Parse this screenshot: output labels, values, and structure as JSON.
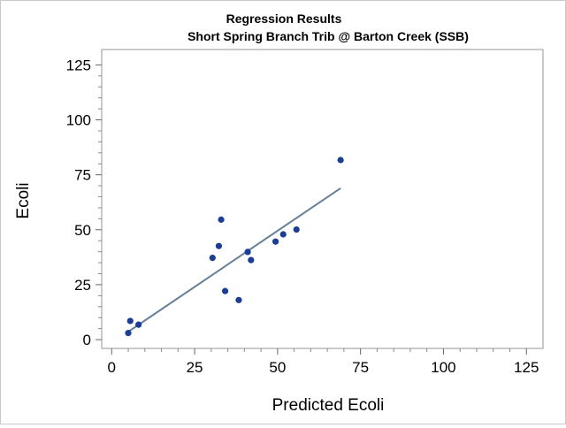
{
  "chart_data": {
    "type": "scatter",
    "title": "Regression Results",
    "subtitle": "Short Spring Branch Trib @ Barton Creek (SSB)",
    "xlabel": "Predicted Ecoli",
    "ylabel": "Ecoli",
    "xlim": [
      -3,
      130
    ],
    "ylim": [
      -4,
      132
    ],
    "x_ticks": [
      0,
      25,
      50,
      75,
      100,
      125
    ],
    "y_ticks": [
      0,
      25,
      50,
      75,
      100,
      125
    ],
    "x_tick_labels": [
      "0",
      "25",
      "50",
      "75",
      "100",
      "125"
    ],
    "y_tick_labels": [
      "0",
      "25",
      "50",
      "75",
      "100",
      "125"
    ],
    "grid": false,
    "colors": {
      "points": "#1a3d99",
      "line": "#667f99",
      "frame": "#969696"
    },
    "series": [
      {
        "type": "scatter",
        "points": [
          {
            "x": 5.0,
            "y": 3.0
          },
          {
            "x": 5.6,
            "y": 8.5
          },
          {
            "x": 8.1,
            "y": 6.8
          },
          {
            "x": 30.4,
            "y": 37.2
          },
          {
            "x": 32.3,
            "y": 42.6
          },
          {
            "x": 33.0,
            "y": 54.6
          },
          {
            "x": 34.2,
            "y": 22.1
          },
          {
            "x": 38.3,
            "y": 18.0
          },
          {
            "x": 41.0,
            "y": 39.9
          },
          {
            "x": 42.0,
            "y": 36.2
          },
          {
            "x": 49.4,
            "y": 44.6
          },
          {
            "x": 51.7,
            "y": 47.9
          },
          {
            "x": 55.7,
            "y": 50.1
          },
          {
            "x": 69.0,
            "y": 81.7
          }
        ]
      },
      {
        "type": "line",
        "points": [
          {
            "x": 5.0,
            "y": 3.6
          },
          {
            "x": 69.0,
            "y": 68.9
          }
        ]
      }
    ]
  }
}
